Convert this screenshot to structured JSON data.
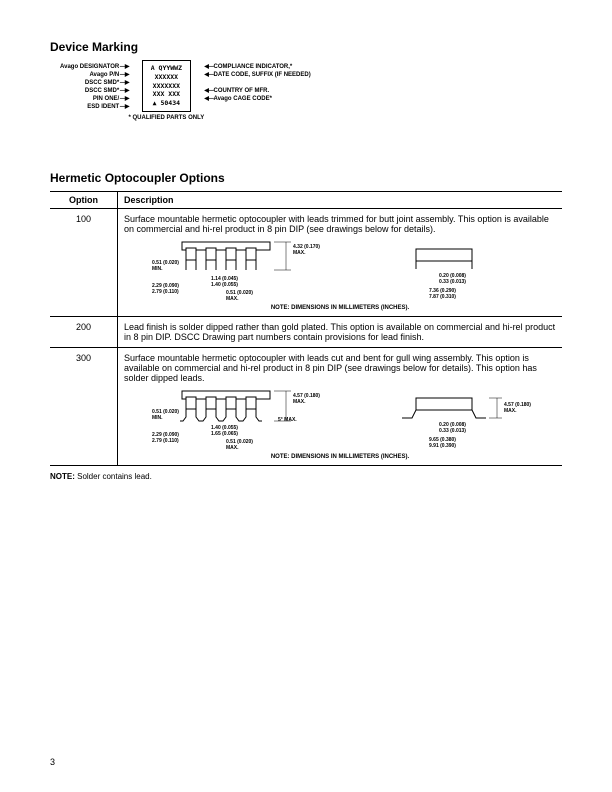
{
  "section1_title": "Device Marking",
  "marking": {
    "left": [
      "Avago DESIGNATOR",
      "Avago P/N",
      "DSCC SMD*",
      "DSCC SMD*",
      "PIN ONE/",
      "ESD IDENT"
    ],
    "box": [
      "A QYYWWZ",
      "XXXXXX",
      "XXXXXXX",
      "XXX  XXX",
      "▲ 50434"
    ],
    "right": [
      "COMPLIANCE INDICATOR,*",
      "DATE CODE, SUFFIX (IF NEEDED)",
      "",
      "COUNTRY OF MFR.",
      "Avago CAGE CODE*"
    ],
    "foot": "* QUALIFIED PARTS ONLY"
  },
  "section2_title": "Hermetic Optocoupler Options",
  "table": {
    "head": [
      "Option",
      "Description"
    ],
    "rows": [
      {
        "opt": "100",
        "desc": "Surface mountable hermetic optocoupler with leads trimmed for butt joint assembly. This option is available on commercial and hi-rel product in 8 pin DIP (see drawings below for details).",
        "draw_note": "NOTE:  DIMENSIONS IN MILLIMETERS (INCHES).",
        "dims": {
          "a": "4.32 (0.170)\nMAX.",
          "b": "0.51 (0.020)\nMIN.",
          "c": "1.14 (0.045)\n1.40 (0.055)",
          "d": "2.29 (0.090)\n2.79 (0.110)",
          "e": "0.51 (0.020)\nMAX.",
          "f": "0.20 (0.008)\n0.33 (0.013)",
          "g": "7.36 (0.290)\n7.87 (0.310)"
        }
      },
      {
        "opt": "200",
        "desc": "Lead finish is solder dipped rather than gold plated. This option is available on commercial and hi-rel product in 8 pin DIP. DSCC Drawing part numbers contain provisions for lead finish."
      },
      {
        "opt": "300",
        "desc": "Surface mountable hermetic optocoupler with leads cut and bent for gull wing assembly. This option is available on commercial and hi-rel product in 8 pin DIP (see drawings below for details). This option has solder dipped leads.",
        "draw_note": "NOTE:  DIMENSIONS IN MILLIMETERS (INCHES).",
        "dims": {
          "a": "4.57 (0.180)\nMAX.",
          "b": "0.51 (0.020)\nMIN.",
          "c": "1.40 (0.055)\n1.65 (0.065)",
          "d": "2.29 (0.090)\n2.79 (0.110)",
          "e": "0.51 (0.020)\nMAX.",
          "ang": "5° MAX.",
          "f": "0.20 (0.008)\n0.33 (0.013)",
          "g": "9.65 (0.380)\n9.91 (0.390)",
          "h": "4.57 (0.180)\nMAX."
        }
      }
    ]
  },
  "footer_note_label": "NOTE:",
  "footer_note_text": " Solder contains lead.",
  "page": "3",
  "colors": {
    "line": "#000",
    "fill": "#fff",
    "hatch": "#666"
  }
}
